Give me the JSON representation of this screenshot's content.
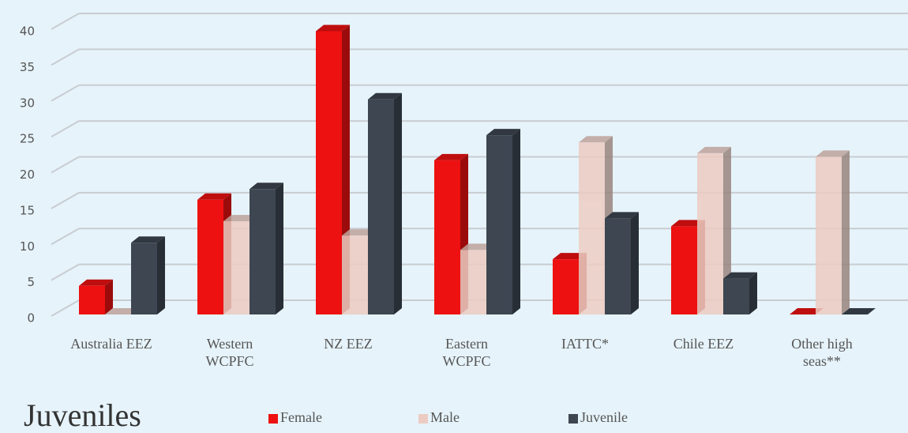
{
  "chart_data": {
    "type": "bar3d",
    "title": "Juveniles",
    "categories": [
      "Australia EEZ",
      "Western WCPFC",
      "NZ EEZ",
      "Eastern WCPFC",
      "IATTC*",
      "Chile EEZ",
      "Other high seas**"
    ],
    "series": [
      {
        "name": "Female",
        "color": "#ee1111",
        "values": [
          4,
          16,
          39.5,
          21.5,
          7.7,
          12.3,
          0
        ]
      },
      {
        "name": "Male",
        "color": "#ecccc2",
        "values": [
          0,
          13,
          11,
          9,
          24,
          22.5,
          22
        ]
      },
      {
        "name": "Juvenile",
        "color": "#3d4651",
        "values": [
          10,
          17.5,
          30,
          25,
          13.4,
          5,
          0
        ]
      }
    ],
    "ylim": [
      0,
      40
    ],
    "yticks": [
      0,
      5,
      10,
      15,
      20,
      25,
      30,
      35,
      40
    ],
    "grid": true,
    "legend": "bottom"
  }
}
